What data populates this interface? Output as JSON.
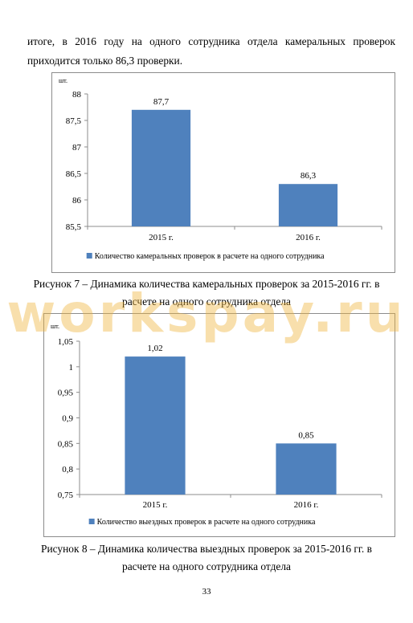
{
  "document": {
    "paragraph_line1": "итоге, в 2016 году на одного сотрудника отдела камеральных проверок",
    "paragraph_line2": "приходится только 86,3 проверки.",
    "figure7_caption_line1": "Рисунок 7 – Динамика количества камеральных проверок за 2015-2016 гг. в",
    "figure7_caption_line2": "расчете на одного сотрудника отдела",
    "figure8_caption_line1": "Рисунок 8 – Динамика количества выездных проверок за 2015-2016 гг. в",
    "figure8_caption_line2": "расчете на одного сотрудника отдела",
    "page_number": "33",
    "watermark": "workspay.ru"
  },
  "chart_data": [
    {
      "type": "bar",
      "unit_label": "шт.",
      "categories": [
        "2015 г.",
        "2016 г."
      ],
      "series": [
        {
          "name": "Количество камеральных проверок в расчете на одного сотрудника",
          "values": [
            87.7,
            86.3
          ]
        }
      ],
      "data_labels": [
        "87,7",
        "86,3"
      ],
      "ylim": [
        85.5,
        88
      ],
      "y_ticks": [
        85.5,
        86,
        86.5,
        87,
        87.5,
        88
      ],
      "y_tick_labels": [
        "85,5",
        "86",
        "86,5",
        "87",
        "87,5",
        "88"
      ],
      "bar_color": "#4f81bd",
      "grid": false,
      "legend_position": "bottom"
    },
    {
      "type": "bar",
      "unit_label": "шт.",
      "categories": [
        "2015 г.",
        "2016 г."
      ],
      "series": [
        {
          "name": "Количество выездных проверок в расчете на одного сотрудника",
          "values": [
            1.02,
            0.85
          ]
        }
      ],
      "data_labels": [
        "1,02",
        "0,85"
      ],
      "ylim": [
        0.75,
        1.05
      ],
      "y_ticks": [
        0.75,
        0.8,
        0.85,
        0.9,
        0.95,
        1.0,
        1.05
      ],
      "y_tick_labels": [
        "0,75",
        "0,8",
        "0,85",
        "0,9",
        "0,95",
        "1",
        "1,05"
      ],
      "bar_color": "#4f81bd",
      "grid": false,
      "legend_position": "bottom"
    }
  ]
}
